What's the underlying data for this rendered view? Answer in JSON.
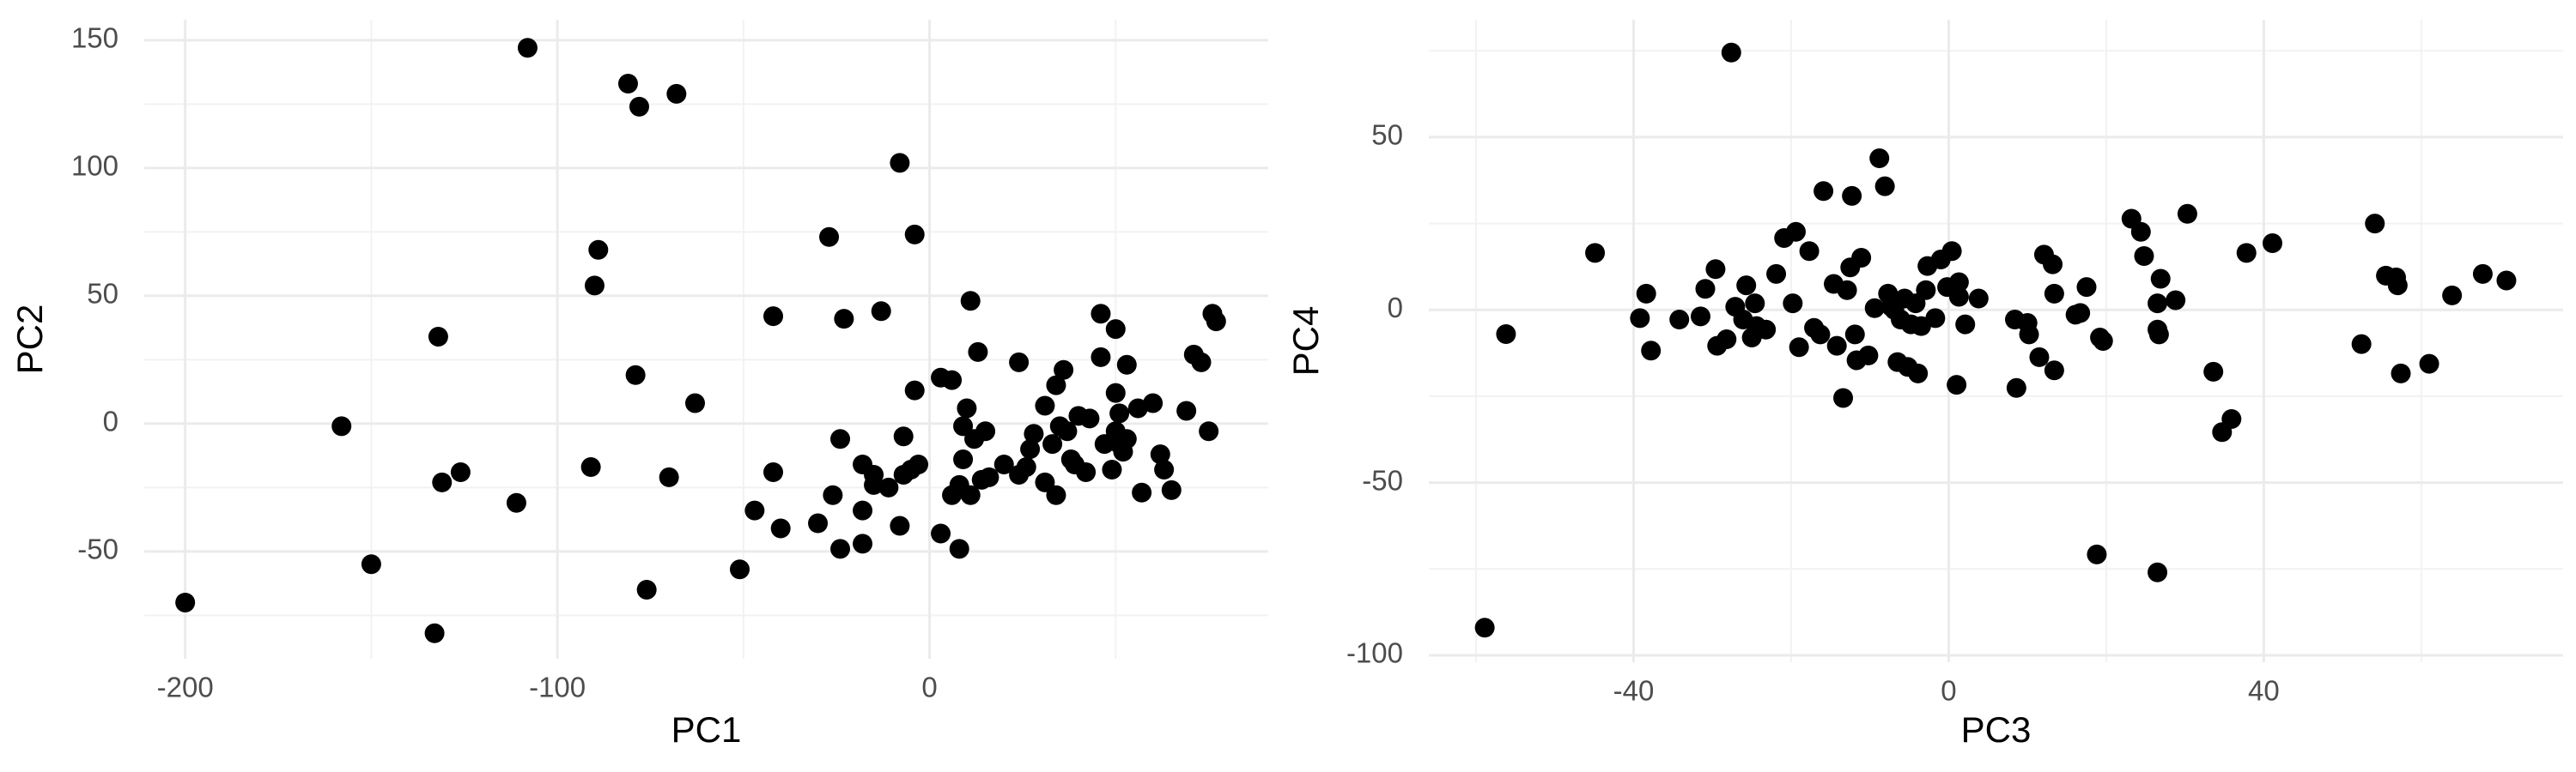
{
  "chart_data": [
    {
      "type": "scatter",
      "x_label": "PC1",
      "y_label": "PC2",
      "color": "#000000",
      "grid": true,
      "xlim": [
        -211,
        91
      ],
      "ylim": [
        -92,
        158
      ],
      "xticks": [
        -200,
        -100,
        0
      ],
      "yticks": [
        -50,
        0,
        50,
        100,
        150
      ],
      "x": [
        -200,
        -108,
        -81,
        -78,
        -68,
        -89,
        -90,
        -132,
        -158,
        -131,
        -126,
        -111,
        -91,
        -79,
        -70,
        -63,
        -76,
        -133,
        -150,
        -8,
        -4,
        -27,
        -42,
        -23,
        -13,
        11,
        -51,
        -47,
        -42,
        -40,
        -30,
        -26,
        -24,
        -24,
        -18,
        -18,
        -18,
        -15,
        -15,
        -11,
        -8,
        -7,
        -7,
        -5,
        -3,
        -4,
        3,
        3,
        6,
        8,
        6,
        8,
        9,
        9,
        10,
        11,
        12,
        13,
        14,
        15,
        16,
        20,
        24,
        24,
        26,
        27,
        28,
        31,
        31,
        33,
        34,
        34,
        35,
        36,
        37,
        38,
        39,
        40,
        42,
        43,
        46,
        46,
        47,
        49,
        50,
        50,
        50,
        51,
        51,
        52,
        53,
        53,
        56,
        57,
        60,
        62,
        63,
        65,
        69,
        71,
        73,
        75,
        76,
        77
      ],
      "y": [
        -70,
        147,
        133,
        124,
        129,
        68,
        54,
        34,
        -1,
        -23,
        -19,
        -31,
        -17,
        19,
        -21,
        8,
        -65,
        -82,
        -55,
        102,
        74,
        73,
        42,
        41,
        44,
        48,
        -57,
        -34,
        -19,
        -41,
        -39,
        -28,
        -6,
        -49,
        -47,
        -34,
        -16,
        -24,
        -20,
        -25,
        -40,
        -5,
        -20,
        -18,
        -16,
        13,
        -43,
        18,
        17,
        -49,
        -28,
        -24,
        -1,
        -14,
        6,
        -28,
        -6,
        28,
        -22,
        -3,
        -21,
        -16,
        24,
        -20,
        -17,
        -10,
        -4,
        7,
        -23,
        -8,
        -28,
        15,
        -1,
        21,
        -3,
        -14,
        -16,
        3,
        -19,
        2,
        43,
        26,
        -8,
        -18,
        37,
        12,
        -3,
        4,
        -8,
        -11,
        23,
        -6,
        6,
        -27,
        8,
        -12,
        -18,
        -26,
        5,
        27,
        24,
        -3,
        43,
        40
      ]
    },
    {
      "type": "scatter",
      "x_label": "PC3",
      "y_label": "PC4",
      "color": "#000000",
      "grid": true,
      "xlim": [
        -66,
        78
      ],
      "ylim": [
        -102,
        84
      ],
      "xticks": [
        -40,
        0,
        40
      ],
      "yticks": [
        -100,
        -50,
        0,
        50
      ],
      "x": [
        -27.6,
        -58.9,
        -56.2,
        -44.9,
        -39.2,
        -38.4,
        -37.8,
        -34.2,
        -31.5,
        -30.9,
        -29.6,
        -29.4,
        -28.2,
        -27.1,
        -26.1,
        -25.7,
        -25,
        -24.6,
        -24.4,
        -23.2,
        -21.9,
        -20.9,
        -19.4,
        -19.8,
        -19,
        -17.7,
        -17.1,
        -16.3,
        -15.9,
        -14.6,
        -14.2,
        -13.4,
        -12.9,
        -12.5,
        -12.3,
        -11.9,
        -11.7,
        -11.1,
        -10.2,
        -9.4,
        -8.8,
        -8.1,
        -7.7,
        -7.3,
        -6.9,
        -6.5,
        -6.1,
        -5.6,
        -5.2,
        -4.8,
        -4.2,
        -3.9,
        -3.5,
        -2.9,
        -2.7,
        -1.7,
        -1,
        -0.2,
        0.4,
        1.3,
        1,
        1.3,
        2.1,
        3.8,
        8.4,
        8.6,
        10,
        10.2,
        11.5,
        12.1,
        13.2,
        13.4,
        13.4,
        16.1,
        16.7,
        17.5,
        18.8,
        19.2,
        19.6,
        23.2,
        24.4,
        24.8,
        26.5,
        26.5,
        26.5,
        26.7,
        26.9,
        28.8,
        30.3,
        33.6,
        34.7,
        35.9,
        37.8,
        41.1,
        52.4,
        55.5,
        56.8,
        54.1,
        57,
        57.4,
        61,
        63.9,
        67.8,
        70.8
      ],
      "y": [
        74.5,
        -92,
        -7,
        16.5,
        -2.4,
        4.7,
        -11.8,
        -2.8,
        -1.9,
        6.1,
        11.8,
        -10.4,
        -8.5,
        0.9,
        -2.8,
        7.1,
        -8,
        1.9,
        -4.7,
        -5.7,
        10.4,
        20.8,
        22.6,
        1.9,
        -10.8,
        17,
        -5.2,
        -7.1,
        34.4,
        7.5,
        -10.4,
        -25.5,
        5.7,
        12.3,
        33,
        -7.1,
        -14.6,
        15.1,
        -13.2,
        0.5,
        43.9,
        35.8,
        4.7,
        0.9,
        0,
        -15.1,
        -2.8,
        3.3,
        -16.5,
        -4.2,
        1.9,
        -18.4,
        -4.7,
        5.7,
        12.7,
        -2.4,
        14.6,
        6.6,
        17,
        3.8,
        -21.7,
        8,
        -4.2,
        3.3,
        -2.8,
        -22.6,
        -3.8,
        -7.1,
        -13.7,
        16,
        13.2,
        4.7,
        -17.5,
        -1.4,
        -0.9,
        6.6,
        -70.8,
        -8,
        -9,
        26.4,
        22.6,
        15.6,
        -5.7,
        -76,
        1.9,
        -7.1,
        9,
        2.8,
        27.8,
        -17.9,
        -35.4,
        -31.6,
        16.5,
        19.3,
        -9.9,
        9.9,
        9.4,
        25,
        7.1,
        -18.4,
        -15.6,
        4.2,
        10.4,
        8.5
      ]
    }
  ]
}
